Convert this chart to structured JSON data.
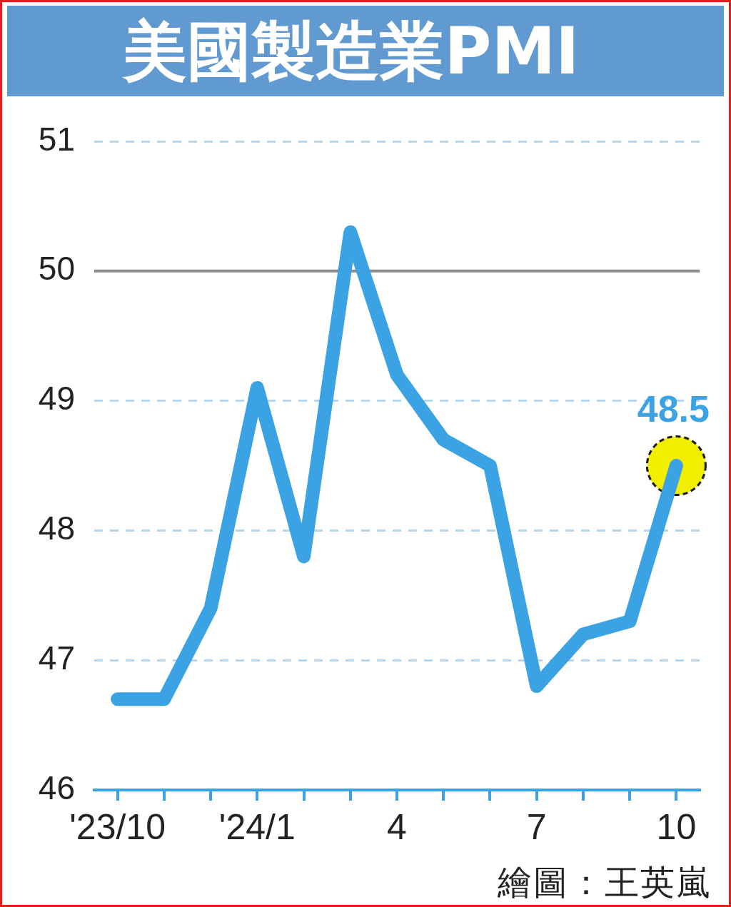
{
  "chart_data": {
    "type": "line",
    "title": "美國製造業PMI",
    "categories": [
      "'23/10",
      null,
      null,
      "'24/1",
      null,
      null,
      "4",
      null,
      null,
      "7",
      null,
      null,
      "10"
    ],
    "series": [
      {
        "color": "#3ba3e3",
        "values": [
          46.7,
          46.7,
          47.4,
          49.1,
          47.8,
          50.3,
          49.2,
          48.7,
          48.5,
          46.8,
          47.2,
          47.3,
          48.5
        ],
        "value_labels": [
          null,
          null,
          null,
          null,
          null,
          null,
          null,
          null,
          null,
          null,
          null,
          null,
          "48.5"
        ]
      },
      {
        "type": "scatter",
        "color": "#f2ee00",
        "marker": "circle",
        "values": [
          null,
          null,
          null,
          null,
          null,
          null,
          null,
          null,
          null,
          null,
          null,
          null,
          48.5
        ]
      }
    ],
    "ylim": [
      46,
      51
    ],
    "yticks": [
      46,
      47,
      48,
      49,
      50,
      51
    ],
    "grid": "y",
    "ref_lines": [
      {
        "axis": "y",
        "value": 50,
        "color": "#8c8c8c",
        "line_style": "solid"
      }
    ],
    "annotations": [
      "繪圖：王英嵐"
    ]
  }
}
